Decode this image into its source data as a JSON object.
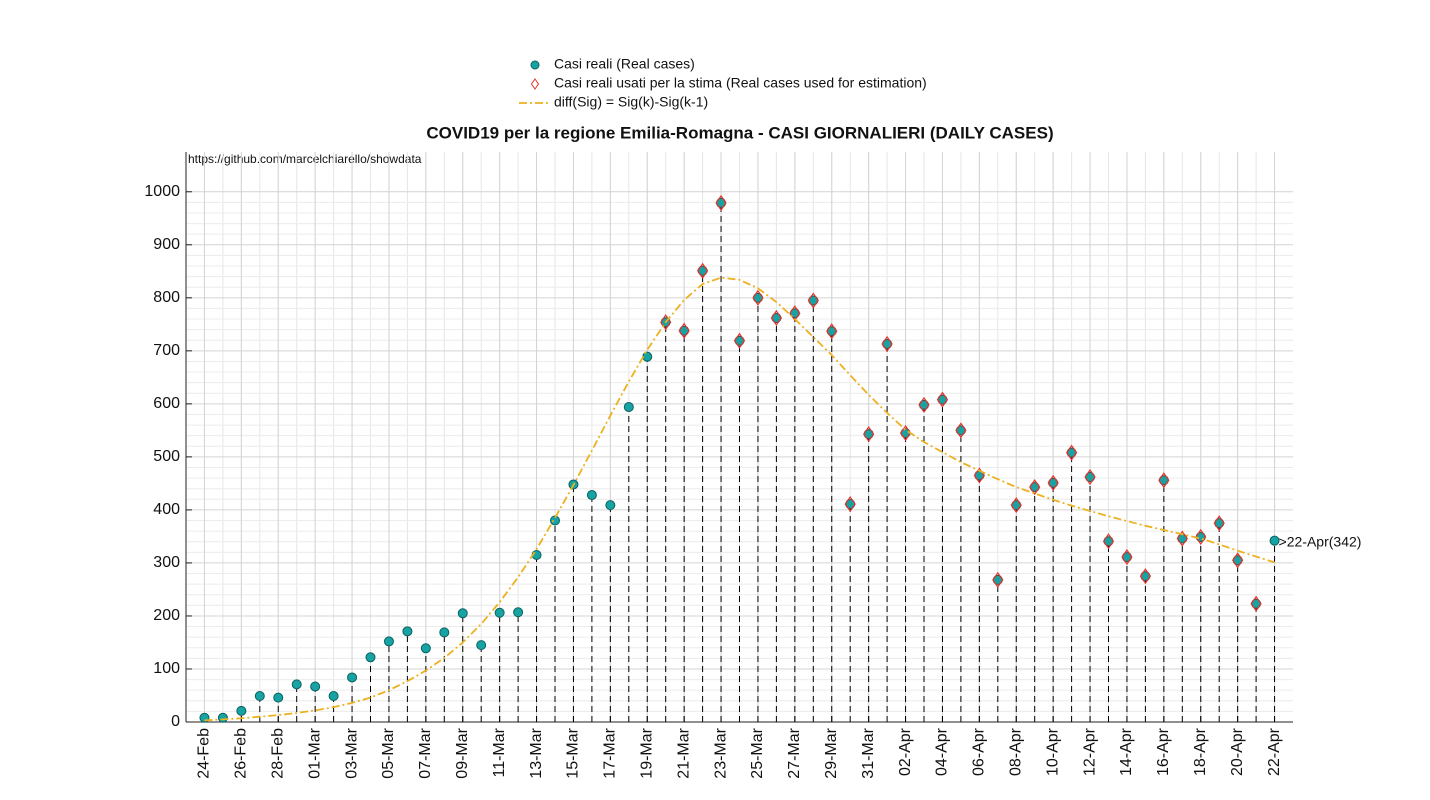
{
  "chart_data": {
    "type": "stem",
    "title": "COVID19 per la regione Emilia-Romagna - CASI GIORNALIERI (DAILY CASES)",
    "source": "https://github.com/marcelchiarello/showdata",
    "annotation": ">22-Apr(342)",
    "categories": [
      "24-Feb",
      null,
      "26-Feb",
      null,
      "28-Feb",
      null,
      "01-Mar",
      null,
      "03-Mar",
      null,
      "05-Mar",
      null,
      "07-Mar",
      null,
      "09-Mar",
      null,
      "11-Mar",
      null,
      "13-Mar",
      null,
      "15-Mar",
      null,
      "17-Mar",
      null,
      "19-Mar",
      null,
      "21-Mar",
      null,
      "23-Mar",
      null,
      "25-Mar",
      null,
      "27-Mar",
      null,
      "29-Mar",
      null,
      "31-Mar",
      null,
      "02-Apr",
      null,
      "04-Apr",
      null,
      "06-Apr",
      null,
      "08-Apr",
      null,
      "10-Apr",
      null,
      "12-Apr",
      null,
      "14-Apr",
      null,
      "16-Apr",
      null,
      "18-Apr",
      null,
      "20-Apr",
      null,
      "22-Apr"
    ],
    "series": [
      {
        "name": "Casi reali (Real cases)",
        "kind": "stem",
        "color": "#17a3a3",
        "values": [
          8,
          8,
          21,
          49,
          46,
          71,
          67,
          49,
          84,
          122,
          152,
          171,
          139,
          169,
          205,
          145,
          206,
          207,
          315,
          380,
          448,
          428,
          409,
          594,
          689,
          754,
          738,
          851,
          979,
          719,
          800,
          762,
          771,
          795,
          737,
          411,
          543,
          713,
          545,
          598,
          608,
          550,
          465,
          268,
          409,
          443,
          451,
          508,
          462,
          341,
          311,
          275,
          456,
          346,
          349,
          375,
          305,
          223,
          342
        ]
      },
      {
        "name": "Casi reali usati per la stima (Real cases used for estimation)",
        "kind": "diamond",
        "color": "#e8322a",
        "values": [
          null,
          null,
          null,
          null,
          null,
          null,
          null,
          null,
          null,
          null,
          null,
          null,
          null,
          null,
          null,
          null,
          null,
          null,
          null,
          null,
          null,
          null,
          null,
          null,
          null,
          754,
          738,
          851,
          979,
          719,
          800,
          762,
          771,
          795,
          737,
          411,
          543,
          713,
          545,
          598,
          608,
          550,
          465,
          268,
          409,
          443,
          451,
          508,
          462,
          341,
          311,
          275,
          456,
          346,
          349,
          375,
          305,
          223,
          null
        ]
      },
      {
        "name": "diff(Sig) = Sig(k)-Sig(k-1)",
        "kind": "dashdot",
        "color": "#edb120",
        "values": [
          3,
          5,
          7,
          10,
          13,
          17,
          22,
          28,
          36,
          46,
          60,
          77,
          97,
          121,
          150,
          185,
          226,
          273,
          326,
          385,
          447,
          512,
          578,
          642,
          702,
          754,
          796,
          826,
          838,
          834,
          818,
          792,
          760,
          726,
          692,
          654,
          617,
          583,
          551,
          528,
          509,
          490,
          474,
          458,
          443,
          431,
          419,
          408,
          398,
          388,
          379,
          370,
          362,
          354,
          346,
          335,
          323,
          312,
          301
        ]
      }
    ],
    "ylim": [
      0,
      1075
    ],
    "yticks": [
      0,
      100,
      200,
      300,
      400,
      500,
      600,
      700,
      800,
      900,
      1000
    ],
    "grid": true,
    "minor_grid": true,
    "legend": "top"
  }
}
